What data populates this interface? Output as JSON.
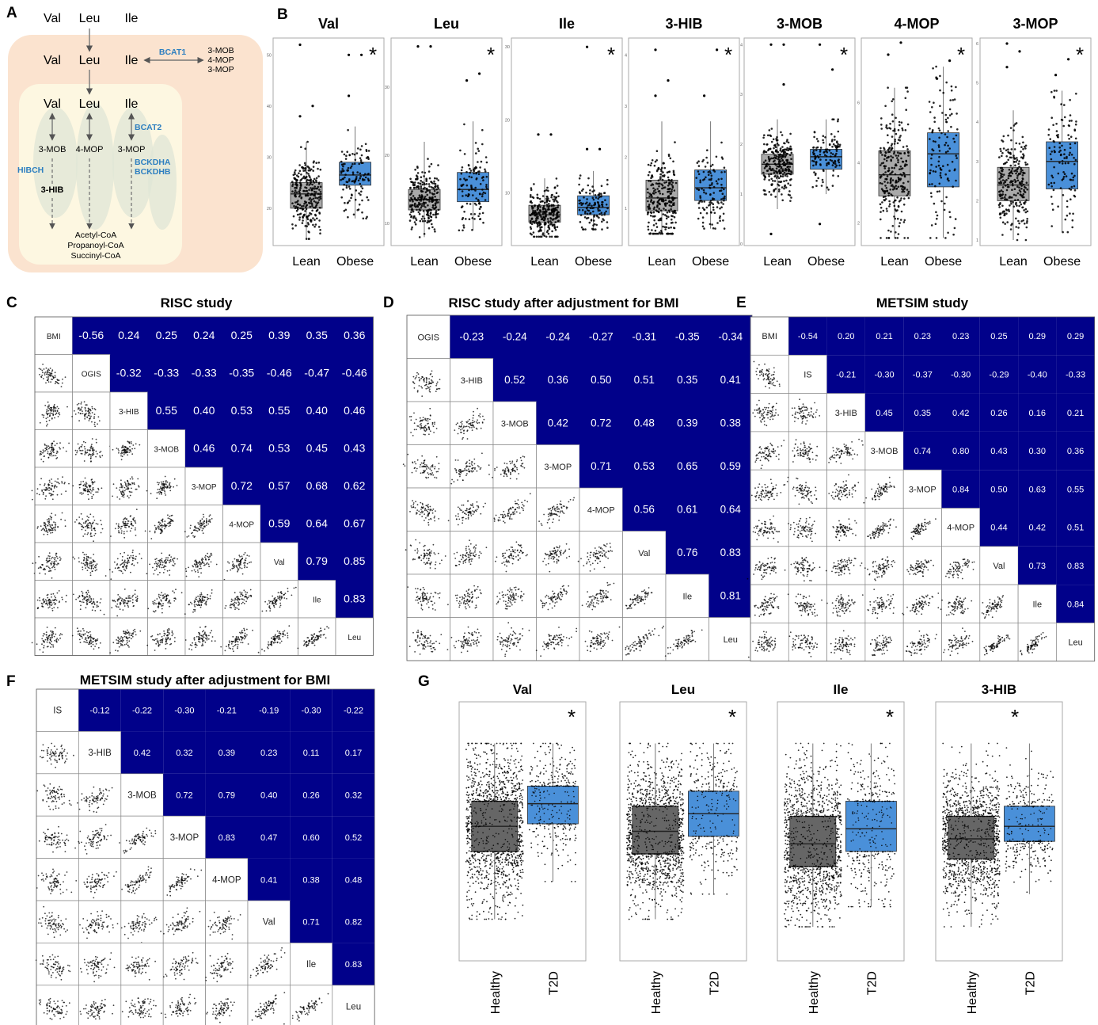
{
  "figure": {
    "panel_letters": [
      "A",
      "B",
      "C",
      "D",
      "E",
      "F",
      "G"
    ],
    "colors": {
      "outer_bg": "#fbe3cf",
      "mito_bg": "#fdf7e1",
      "mito_cristae": "#dfe6d6",
      "enzyme_text": "#2e7fc0",
      "lean_box": "#a9a9a9",
      "obese_box": "#4a90d9",
      "healthy_box": "#666666",
      "t2d_box": "#4a90d9",
      "matrix_fill": "#01018a",
      "point": "#000000"
    }
  },
  "panel_a": {
    "top_row": [
      "Val",
      "Leu",
      "Ile"
    ],
    "cytosol_row": [
      "Val",
      "Leu",
      "Ile"
    ],
    "mito_row": [
      "Val",
      "Leu",
      "Ile"
    ],
    "bcat1_label": "BCAT1",
    "bcat1_products": [
      "3-MOB",
      "4-MOP",
      "3-MOP"
    ],
    "bcat2_label": "BCAT2",
    "keto_acids": [
      "3-MOB",
      "4-MOP",
      "3-MOP"
    ],
    "bckdh_labels": [
      "BCKDHA",
      "BCKDHB"
    ],
    "hibch_label": "HIBCH",
    "hib_label": "3-HIB",
    "end_products": [
      "Acetyl-CoA",
      "Propanoyl-CoA",
      "Succinyl-CoA"
    ]
  },
  "chart_data": [
    {
      "id": "B",
      "type": "box",
      "categories": [
        "Lean",
        "Obese"
      ],
      "panels": [
        {
          "title": "Val",
          "significant": true,
          "y_ticks": [
            "20",
            "30",
            "40",
            "50"
          ],
          "ylim": [
            13,
            53
          ],
          "stats": {
            "Lean": {
              "q1": 20,
              "median": 22.8,
              "q3": 25,
              "lo": 14,
              "hi": 33
            },
            "Obese": {
              "q1": 24.5,
              "median": 26.5,
              "q3": 29,
              "lo": 18,
              "hi": 36
            }
          },
          "outliers": {
            "Lean": [
              38,
              40,
              52
            ],
            "Obese": [
              42,
              50,
              50
            ]
          }
        },
        {
          "title": "Leu",
          "significant": true,
          "y_ticks": [
            "10",
            "20",
            "30"
          ],
          "ylim": [
            7,
            37
          ],
          "stats": {
            "Lean": {
              "q1": 12,
              "median": 13.5,
              "q3": 15,
              "lo": 8,
              "hi": 22
            },
            "Obese": {
              "q1": 13.2,
              "median": 15,
              "q3": 17.5,
              "lo": 9,
              "hi": 25
            }
          },
          "outliers": {
            "Lean": [
              36,
              36
            ],
            "Obese": [
              31,
              32
            ]
          }
        },
        {
          "title": "Ile",
          "significant": true,
          "y_ticks": [
            "10",
            "20",
            "30"
          ],
          "ylim": [
            3,
            31
          ],
          "stats": {
            "Lean": {
              "q1": 6,
              "median": 7,
              "q3": 8.3,
              "lo": 4,
              "hi": 12
            },
            "Obese": {
              "q1": 7,
              "median": 8,
              "q3": 9.6,
              "lo": 5,
              "hi": 13
            }
          },
          "outliers": {
            "Lean": [
              18,
              18
            ],
            "Obese": [
              16,
              16,
              30
            ]
          }
        },
        {
          "title": "3-HIB",
          "significant": true,
          "y_ticks": [
            "1",
            "2",
            "3",
            "4"
          ],
          "ylim": [
            0.3,
            4.3
          ],
          "stats": {
            "Lean": {
              "q1": 0.95,
              "median": 1.2,
              "q3": 1.55,
              "lo": 0.5,
              "hi": 2.7
            },
            "Obese": {
              "q1": 1.15,
              "median": 1.4,
              "q3": 1.75,
              "lo": 0.6,
              "hi": 2.7
            }
          },
          "outliers": {
            "Lean": [
              3.2,
              3.5,
              4.1
            ],
            "Obese": [
              3.2,
              4.1
            ]
          }
        },
        {
          "title": "3-MOB",
          "significant": true,
          "y_ticks": [
            "0",
            "1",
            "2",
            "3",
            "4"
          ],
          "ylim": [
            0,
            4.1
          ],
          "stats": {
            "Lean": {
              "q1": 1.4,
              "median": 1.6,
              "q3": 1.8,
              "lo": 0.7,
              "hi": 2.5
            },
            "Obese": {
              "q1": 1.5,
              "median": 1.75,
              "q3": 1.9,
              "lo": 1.0,
              "hi": 2.5
            }
          },
          "outliers": {
            "Lean": [
              0.2,
              3.2,
              4.0,
              4.0
            ],
            "Obese": [
              0.4,
              3.5,
              4.0
            ]
          }
        },
        {
          "title": "4-MOP",
          "significant": true,
          "y_ticks": [
            "2",
            "4",
            "6"
          ],
          "ylim": [
            1.3,
            8.1
          ],
          "stats": {
            "Lean": {
              "q1": 2.9,
              "median": 3.6,
              "q3": 4.4,
              "lo": 1.5,
              "hi": 6.5
            },
            "Obese": {
              "q1": 3.2,
              "median": 4.3,
              "q3": 5.0,
              "lo": 1.5,
              "hi": 7.2
            }
          },
          "outliers": {
            "Lean": [
              7.6,
              8.0
            ],
            "Obese": [
              6.8,
              7.4
            ]
          }
        },
        {
          "title": "3-MOP",
          "significant": true,
          "y_ticks": [
            "1",
            "2",
            "3",
            "4",
            "5",
            "6"
          ],
          "ylim": [
            0.9,
            6.1
          ],
          "stats": {
            "Lean": {
              "q1": 2.0,
              "median": 2.4,
              "q3": 2.85,
              "lo": 1.0,
              "hi": 4.3
            },
            "Obese": {
              "q1": 2.3,
              "median": 3.0,
              "q3": 3.5,
              "lo": 1.2,
              "hi": 4.8
            }
          },
          "outliers": {
            "Lean": [
              5.4,
              5.8,
              6.0
            ],
            "Obese": [
              5.2,
              5.6
            ]
          }
        }
      ]
    },
    {
      "id": "C",
      "type": "correlation_matrix",
      "title": "RISC study",
      "variables": [
        "BMI",
        "OGIS",
        "3-HIB",
        "3-MOB",
        "3-MOP",
        "4-MOP",
        "Val",
        "Ile",
        "Leu"
      ],
      "values": [
        [
          "-0.56",
          "0.24",
          "0.25",
          "0.24",
          "0.25",
          "0.39",
          "0.35",
          "0.36"
        ],
        [
          "-0.32",
          "-0.33",
          "-0.33",
          "-0.35",
          "-0.46",
          "-0.47",
          "-0.46"
        ],
        [
          "0.55",
          "0.40",
          "0.53",
          "0.55",
          "0.40",
          "0.46"
        ],
        [
          "0.46",
          "0.74",
          "0.53",
          "0.45",
          "0.43"
        ],
        [
          "0.72",
          "0.57",
          "0.68",
          "0.62"
        ],
        [
          "0.59",
          "0.64",
          "0.67"
        ],
        [
          "0.79",
          "0.85"
        ],
        [
          "0.83"
        ]
      ]
    },
    {
      "id": "D",
      "type": "correlation_matrix",
      "title": "RISC study after adjustment for BMI",
      "variables": [
        "OGIS",
        "3-HIB",
        "3-MOB",
        "3-MOP",
        "4-MOP",
        "Val",
        "Ile",
        "Leu"
      ],
      "values": [
        [
          "-0.23",
          "-0.24",
          "-0.24",
          "-0.27",
          "-0.31",
          "-0.35",
          "-0.34"
        ],
        [
          "0.52",
          "0.36",
          "0.50",
          "0.51",
          "0.35",
          "0.41"
        ],
        [
          "0.42",
          "0.72",
          "0.48",
          "0.39",
          "0.38"
        ],
        [
          "0.71",
          "0.53",
          "0.65",
          "0.59"
        ],
        [
          "0.56",
          "0.61",
          "0.64"
        ],
        [
          "0.76",
          "0.83"
        ],
        [
          "0.81"
        ]
      ]
    },
    {
      "id": "E",
      "type": "correlation_matrix",
      "title": "METSIM study",
      "variables": [
        "BMI",
        "IS",
        "3-HIB",
        "3-MOB",
        "3-MOP",
        "4-MOP",
        "Val",
        "Ile",
        "Leu"
      ],
      "values": [
        [
          "-0.54",
          "0.20",
          "0.21",
          "0.23",
          "0.23",
          "0.25",
          "0.29",
          "0.29"
        ],
        [
          "-0.21",
          "-0.30",
          "-0.37",
          "-0.30",
          "-0.29",
          "-0.40",
          "-0.33"
        ],
        [
          "0.45",
          "0.35",
          "0.42",
          "0.26",
          "0.16",
          "0.21"
        ],
        [
          "0.74",
          "0.80",
          "0.43",
          "0.30",
          "0.36"
        ],
        [
          "0.84",
          "0.50",
          "0.63",
          "0.55"
        ],
        [
          "0.44",
          "0.42",
          "0.51"
        ],
        [
          "0.73",
          "0.83"
        ],
        [
          "0.84"
        ]
      ]
    },
    {
      "id": "F",
      "type": "correlation_matrix",
      "title": "METSIM study after adjustment for BMI",
      "variables": [
        "IS",
        "3-HIB",
        "3-MOB",
        "3-MOP",
        "4-MOP",
        "Val",
        "Ile",
        "Leu"
      ],
      "values": [
        [
          "-0.12",
          "-0.22",
          "-0.30",
          "-0.21",
          "-0.19",
          "-0.30",
          "-0.22"
        ],
        [
          "0.42",
          "0.32",
          "0.39",
          "0.23",
          "0.11",
          "0.17"
        ],
        [
          "0.72",
          "0.79",
          "0.40",
          "0.26",
          "0.32"
        ],
        [
          "0.83",
          "0.47",
          "0.60",
          "0.52"
        ],
        [
          "0.41",
          "0.38",
          "0.48"
        ],
        [
          "0.71",
          "0.82"
        ],
        [
          "0.83"
        ]
      ]
    },
    {
      "id": "G",
      "type": "box",
      "categories": [
        "Healthy",
        "T2D"
      ],
      "panels": [
        {
          "title": "Val",
          "significant": true,
          "ylim": [
            0,
            1
          ],
          "stats": {
            "Healthy": {
              "q1": 0.42,
              "median": 0.52,
              "q3": 0.62,
              "lo": 0.15,
              "hi": 0.85
            },
            "T2D": {
              "q1": 0.53,
              "median": 0.61,
              "q3": 0.68,
              "lo": 0.3,
              "hi": 0.85
            }
          }
        },
        {
          "title": "Leu",
          "significant": true,
          "ylim": [
            0,
            1
          ],
          "stats": {
            "Healthy": {
              "q1": 0.41,
              "median": 0.5,
              "q3": 0.6,
              "lo": 0.15,
              "hi": 0.85
            },
            "T2D": {
              "q1": 0.48,
              "median": 0.57,
              "q3": 0.66,
              "lo": 0.25,
              "hi": 0.85
            }
          }
        },
        {
          "title": "Ile",
          "significant": true,
          "ylim": [
            0,
            1
          ],
          "stats": {
            "Healthy": {
              "q1": 0.36,
              "median": 0.45,
              "q3": 0.56,
              "lo": 0.12,
              "hi": 0.85
            },
            "T2D": {
              "q1": 0.42,
              "median": 0.51,
              "q3": 0.62,
              "lo": 0.2,
              "hi": 0.85
            }
          }
        },
        {
          "title": "3-HIB",
          "significant": true,
          "ylim": [
            0,
            1
          ],
          "stats": {
            "Healthy": {
              "q1": 0.39,
              "median": 0.47,
              "q3": 0.56,
              "lo": 0.12,
              "hi": 0.85
            },
            "T2D": {
              "q1": 0.46,
              "median": 0.52,
              "q3": 0.6,
              "lo": 0.25,
              "hi": 0.85
            }
          }
        }
      ]
    }
  ]
}
